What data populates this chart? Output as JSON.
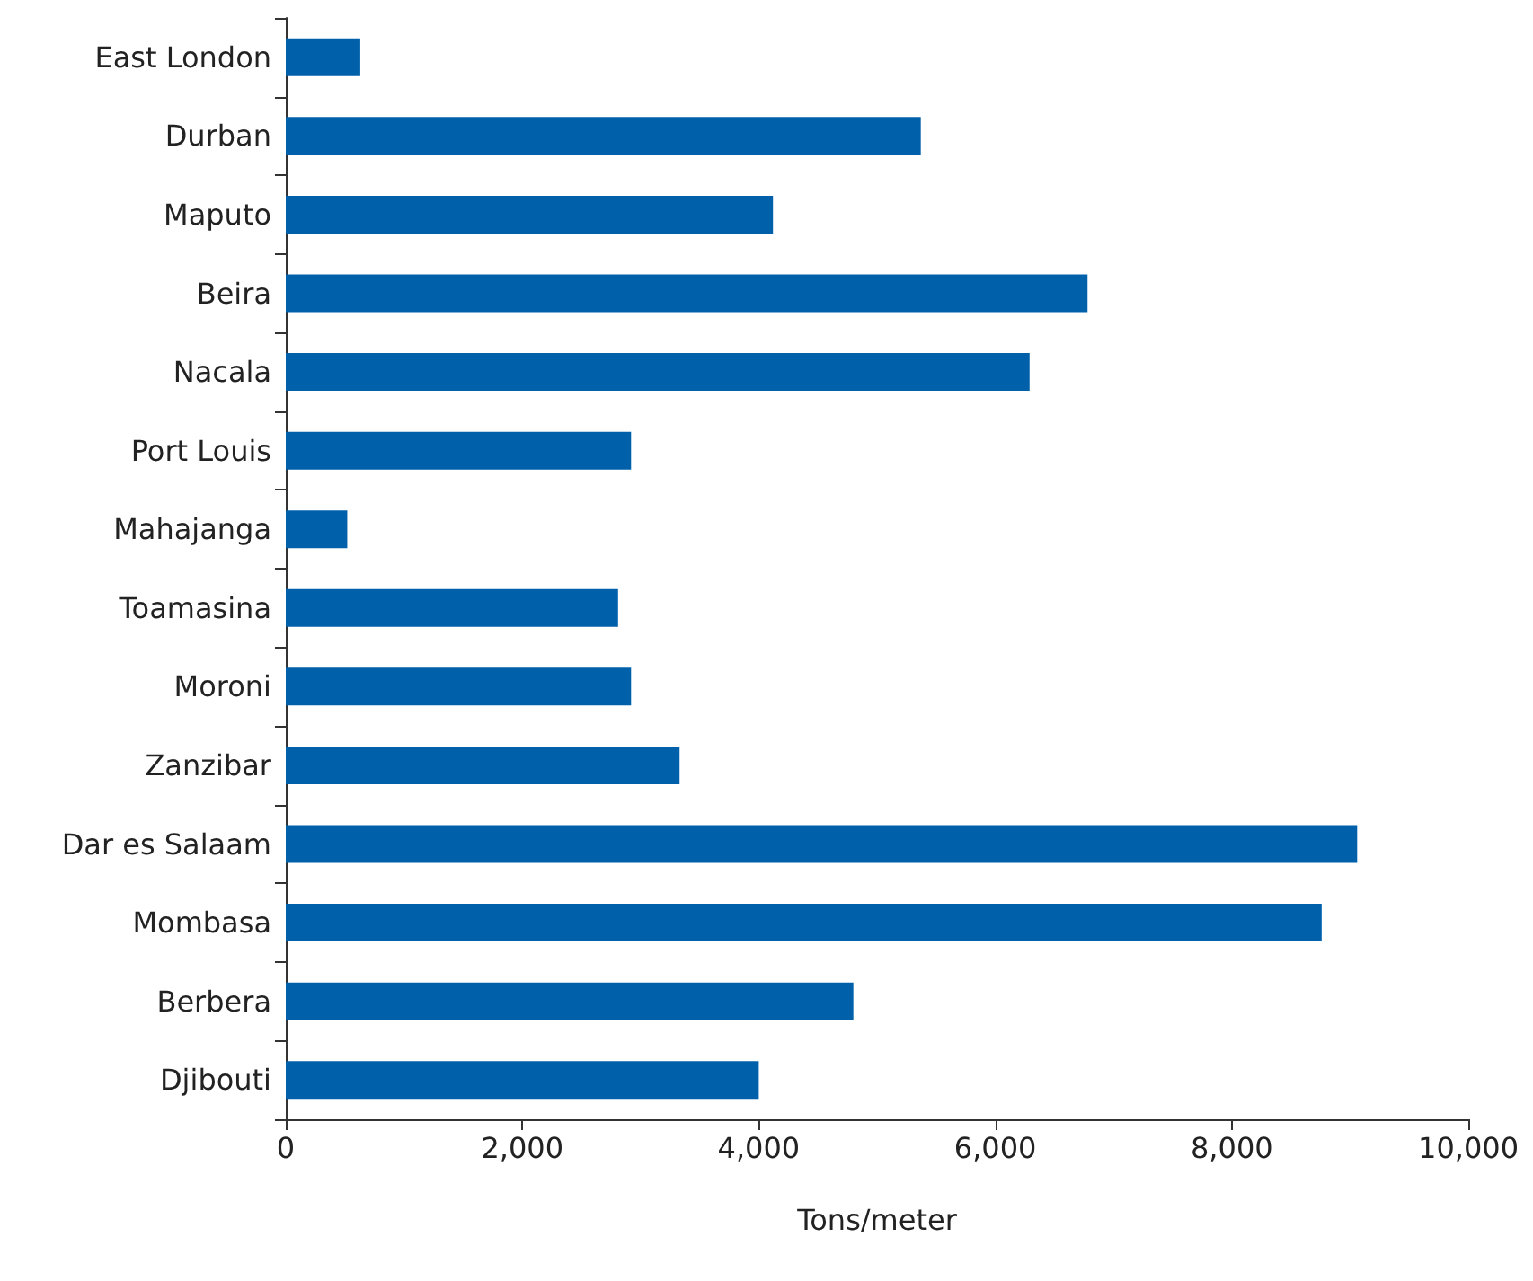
{
  "chart_data": {
    "type": "bar",
    "orientation": "horizontal",
    "xlabel": "Tons/meter",
    "categories": [
      "East London",
      "Durban",
      "Maputo",
      "Beira",
      "Nacala",
      "Port Louis",
      "Mahajanga",
      "Toamasina",
      "Moroni",
      "Zanzibar",
      "Dar es Salaam",
      "Mombasa",
      "Berbera",
      "Djibouti"
    ],
    "series": [
      {
        "color": "#0060aa",
        "values": [
          630,
          5370,
          4120,
          6780,
          6290,
          2920,
          520,
          2810,
          2920,
          3330,
          9060,
          8760,
          4800,
          4000
        ]
      }
    ],
    "xlim": [
      0,
      10000
    ],
    "xticks": [
      {
        "value": 0,
        "label": "0"
      },
      {
        "value": 2000,
        "label": "2,000"
      },
      {
        "value": 4000,
        "label": "4,000"
      },
      {
        "value": 6000,
        "label": "6,000"
      },
      {
        "value": 8000,
        "label": "8,000"
      },
      {
        "value": 10000,
        "label": "10,000"
      }
    ],
    "grid": false
  }
}
